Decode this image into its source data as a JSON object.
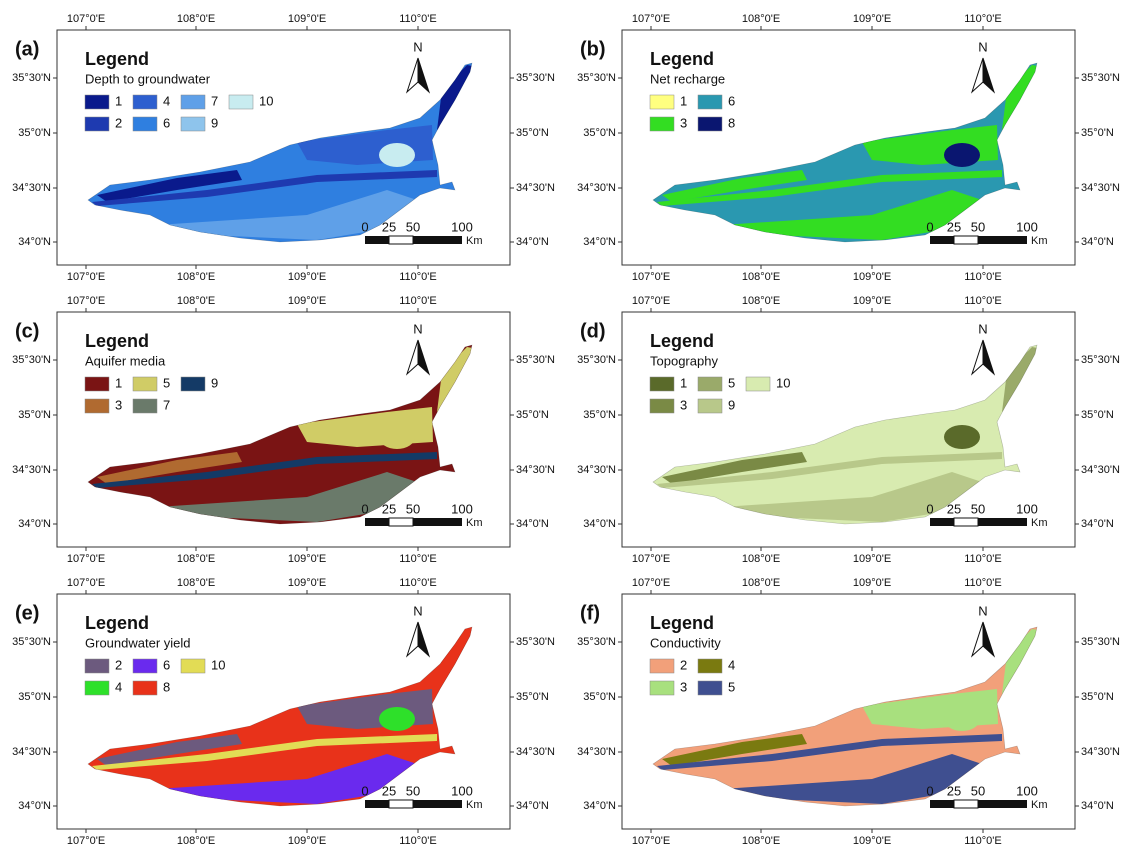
{
  "panels": [
    {
      "label": "(a)",
      "legend_title": "Legend",
      "layer": "Depth to groundwater",
      "classes": [
        {
          "label": "1",
          "color": "#0a1a8c"
        },
        {
          "label": "2",
          "color": "#1e3ab0"
        },
        {
          "label": "4",
          "color": "#2d5fcf"
        },
        {
          "label": "6",
          "color": "#2f7fe0"
        },
        {
          "label": "7",
          "color": "#5fa0e8"
        },
        {
          "label": "9",
          "color": "#8ec4ec"
        },
        {
          "label": "10",
          "color": "#c8ecf0"
        }
      ]
    },
    {
      "label": "(b)",
      "legend_title": "Legend",
      "layer": "Net recharge",
      "classes": [
        {
          "label": "1",
          "color": "#ffff80"
        },
        {
          "label": "3",
          "color": "#33dd22"
        },
        {
          "label": "6",
          "color": "#2a98b0"
        },
        {
          "label": "8",
          "color": "#0a1670"
        }
      ]
    },
    {
      "label": "(c)",
      "legend_title": "Legend",
      "layer": "Aquifer media",
      "classes": [
        {
          "label": "1",
          "color": "#7a1414"
        },
        {
          "label": "3",
          "color": "#b06a30"
        },
        {
          "label": "5",
          "color": "#d0cc66"
        },
        {
          "label": "7",
          "color": "#6a7a6a"
        },
        {
          "label": "9",
          "color": "#143a66"
        }
      ]
    },
    {
      "label": "(d)",
      "legend_title": "Legend",
      "layer": "Topography",
      "classes": [
        {
          "label": "1",
          "color": "#5a6a2a"
        },
        {
          "label": "3",
          "color": "#7a8a45"
        },
        {
          "label": "5",
          "color": "#9aaa6a"
        },
        {
          "label": "9",
          "color": "#b8c88a"
        },
        {
          "label": "10",
          "color": "#d8ebb0"
        }
      ]
    },
    {
      "label": "(e)",
      "legend_title": "Legend",
      "layer": "Groundwater yield",
      "classes": [
        {
          "label": "2",
          "color": "#6c5a7e"
        },
        {
          "label": "4",
          "color": "#2ee02a"
        },
        {
          "label": "6",
          "color": "#6a2aee"
        },
        {
          "label": "8",
          "color": "#e8321a"
        },
        {
          "label": "10",
          "color": "#e2dc55"
        }
      ]
    },
    {
      "label": "(f)",
      "legend_title": "Legend",
      "layer": "Conductivity",
      "classes": [
        {
          "label": "2",
          "color": "#f2a07a"
        },
        {
          "label": "3",
          "color": "#a8e07e"
        },
        {
          "label": "4",
          "color": "#7a7a10"
        },
        {
          "label": "5",
          "color": "#3f4f90"
        }
      ]
    }
  ],
  "longitude_labels": [
    "107°0'E",
    "108°0'E",
    "109°0'E",
    "110°0'E"
  ],
  "latitude_labels": [
    "35°30'N",
    "35°0'N",
    "34°30'N",
    "34°0'N"
  ],
  "north": "N",
  "scale_labels": [
    "0",
    "25",
    "50",
    "100"
  ],
  "scale_unit": "Km"
}
